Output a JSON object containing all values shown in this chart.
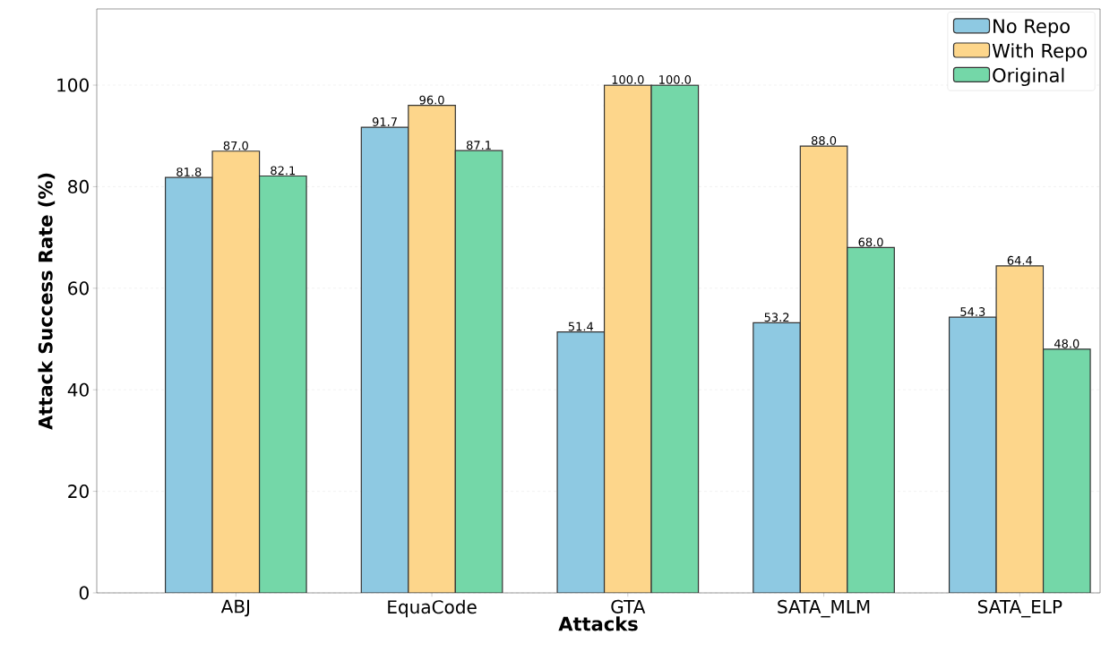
{
  "chart_data": {
    "type": "bar",
    "xlabel": "Attacks",
    "ylabel": "Attack Success Rate (%)",
    "categories": [
      "ABJ",
      "EquaCode",
      "GTA",
      "SATA_MLM",
      "SATA_ELP"
    ],
    "series": [
      {
        "name": "No Repo",
        "color": "#8ec9e2",
        "values": [
          81.8,
          91.7,
          51.4,
          53.2,
          54.3
        ],
        "value_labels": [
          "81.8",
          "91.7",
          "51.4",
          "53.2",
          "54.3"
        ]
      },
      {
        "name": "With Repo",
        "color": "#fdd68b",
        "values": [
          87.0,
          96.0,
          100.0,
          88.0,
          64.4
        ],
        "value_labels": [
          "87.0",
          "96.0",
          "100.0",
          "88.0",
          "64.4"
        ]
      },
      {
        "name": "Original",
        "color": "#74d7a8",
        "values": [
          82.1,
          87.1,
          100.0,
          68.0,
          48.0
        ],
        "value_labels": [
          "82.1",
          "87.1",
          "100.0",
          "68.0",
          "48.0"
        ]
      }
    ],
    "ylim": [
      0,
      115
    ],
    "yticks": [
      0,
      20,
      40,
      60,
      80,
      100
    ],
    "grid": "y",
    "legend": "top right"
  }
}
